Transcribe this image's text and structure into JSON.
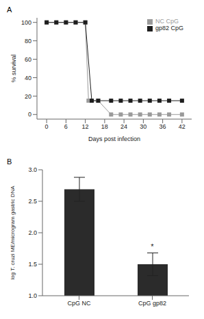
{
  "chart_data": [
    {
      "type": "line",
      "title": "A",
      "x_label": "Days post infection",
      "y_label": "% survival",
      "x": [
        0,
        3,
        6,
        9,
        12,
        13,
        14,
        16,
        20,
        23,
        26,
        29,
        32,
        35,
        38,
        42
      ],
      "series": [
        {
          "name": "NC CpG",
          "color": "#9a9a9a",
          "marker": "square",
          "values": [
            100,
            100,
            100,
            100,
            100,
            15,
            null,
            15,
            0,
            0,
            0,
            0,
            0,
            0,
            0,
            0
          ]
        },
        {
          "name": "gp82 CpG",
          "color": "#1e1e1e",
          "marker": "square",
          "values": [
            100,
            100,
            100,
            100,
            100,
            null,
            15,
            15,
            15,
            15,
            15,
            15,
            15,
            15,
            15,
            15
          ]
        }
      ],
      "xlim": [
        -3,
        45
      ],
      "xticks": [
        0,
        6,
        12,
        18,
        24,
        30,
        36,
        42
      ],
      "ylim": [
        -5,
        105
      ],
      "yticks": [
        0,
        20,
        40,
        60,
        80,
        100
      ],
      "grid": false,
      "legend": "upper right"
    },
    {
      "type": "bar",
      "title": "B",
      "y_label": "log T. cruzi ME/microgram gastric DNA",
      "categories": [
        "CpG NC",
        "CpG gp82"
      ],
      "values": [
        2.69,
        1.5
      ],
      "errors": [
        0.19,
        0.18
      ],
      "color": "#2b2b2b",
      "ylim": [
        1,
        3
      ],
      "yticks": [
        {
          "value": 1,
          "label": "1.0"
        },
        {
          "value": 1.5,
          "label": "1.5"
        },
        {
          "value": 2,
          "label": "2.0"
        },
        {
          "value": 2.5,
          "label": "2.5"
        },
        {
          "value": 3,
          "label": "3.0"
        }
      ],
      "annotations": [
        {
          "category": "CpG gp82",
          "text": "*"
        }
      ],
      "grid": false
    }
  ]
}
